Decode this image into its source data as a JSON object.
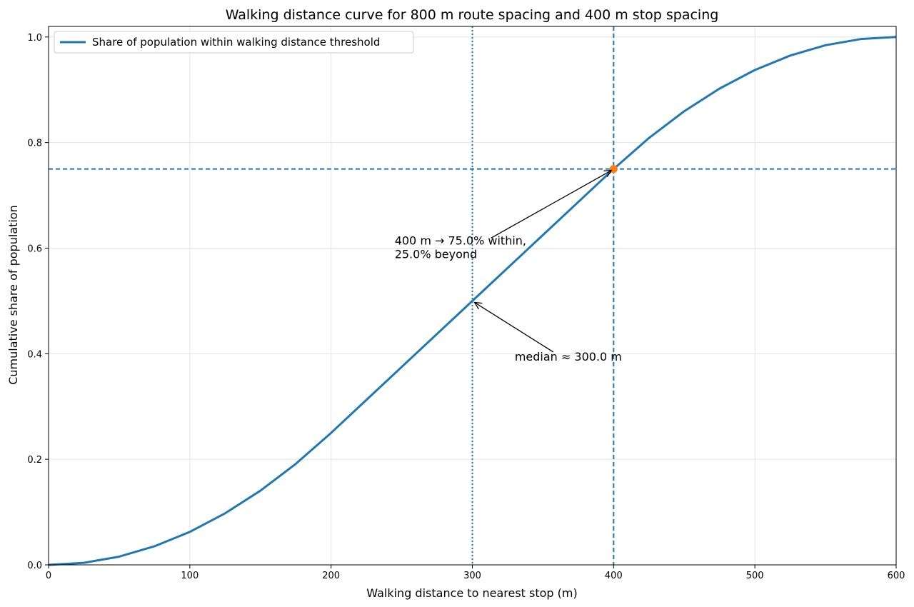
{
  "chart_data": {
    "type": "line",
    "title": "Walking distance curve for 800 m route spacing and 400 m stop spacing",
    "xlabel": "Walking distance to nearest stop (m)",
    "ylabel": "Cumulative share of population",
    "xlim": [
      0,
      600
    ],
    "ylim": [
      0,
      1.02
    ],
    "x_ticks": [
      "0",
      "100",
      "200",
      "300",
      "400",
      "500",
      "600"
    ],
    "y_ticks": [
      "0.0",
      "0.2",
      "0.4",
      "0.6",
      "0.8",
      "1.0"
    ],
    "grid": true,
    "legend": {
      "position": "top-left",
      "entries": [
        "Share of population within walking distance threshold"
      ]
    },
    "series": [
      {
        "name": "Share of population within walking distance threshold",
        "color": "#1f77b4",
        "x": [
          0,
          25,
          50,
          75,
          100,
          125,
          150,
          175,
          200,
          225,
          250,
          275,
          300,
          325,
          350,
          375,
          400,
          425,
          450,
          475,
          500,
          525,
          550,
          575,
          600
        ],
        "y": [
          0,
          0.0039,
          0.0156,
          0.0352,
          0.0625,
          0.0977,
          0.1406,
          0.1914,
          0.25,
          0.3125,
          0.375,
          0.4375,
          0.5,
          0.5625,
          0.625,
          0.6875,
          0.75,
          0.8086,
          0.8594,
          0.9023,
          0.9375,
          0.9648,
          0.9844,
          0.9961,
          1.0
        ]
      }
    ],
    "reference_lines": [
      {
        "orientation": "vertical",
        "value": 300,
        "style": "dotted",
        "color": "#1f77b4"
      },
      {
        "orientation": "vertical",
        "value": 400,
        "style": "dashed",
        "color": "#1f77b4"
      },
      {
        "orientation": "horizontal",
        "value": 0.75,
        "style": "dashed",
        "color": "#1f77b4"
      }
    ],
    "marker": {
      "x": 400,
      "y": 0.75,
      "color": "#ff7f0e"
    },
    "annotations": [
      {
        "lines": [
          "400 m → 75.0% within,",
          "25.0% beyond"
        ],
        "target_x": 400,
        "target_y": 0.75,
        "text_x": 245,
        "text_y": 0.607
      },
      {
        "lines": [
          "median ≈ 300.0 m"
        ],
        "target_x": 300,
        "target_y": 0.5,
        "text_x": 330,
        "text_y": 0.387
      }
    ]
  }
}
